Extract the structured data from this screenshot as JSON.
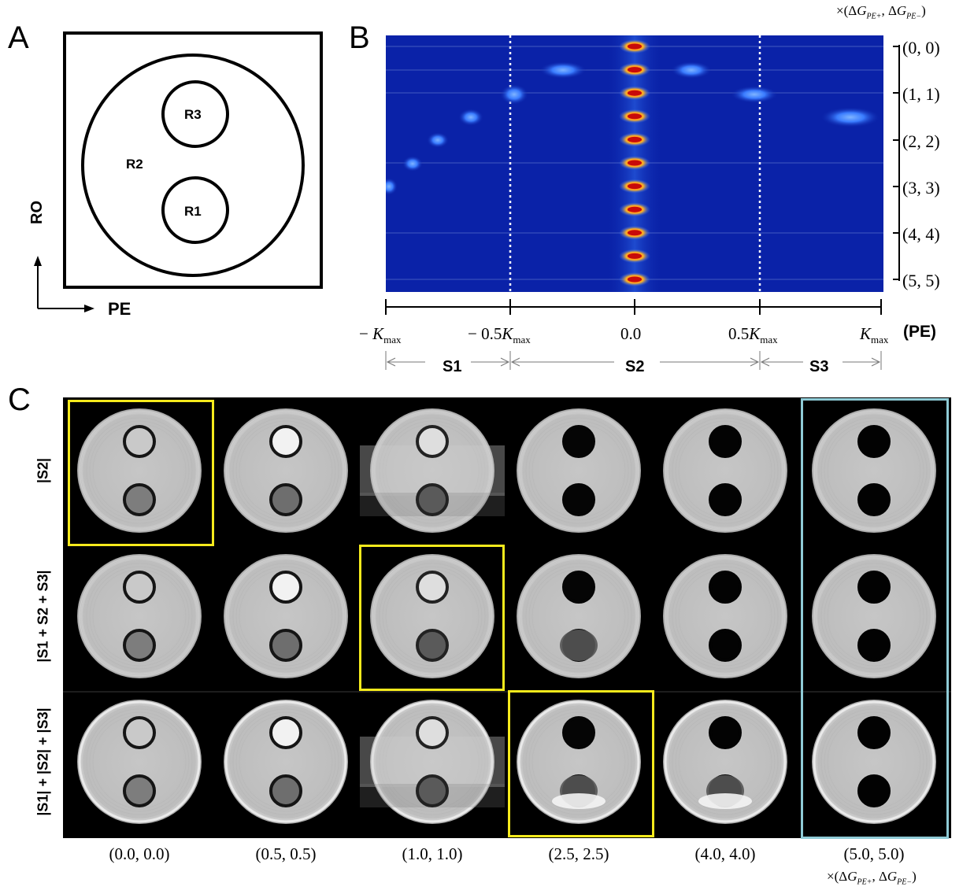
{
  "panels": {
    "a": "A",
    "b": "B",
    "c": "C"
  },
  "panel_a": {
    "regions": {
      "r1": "R1",
      "r2": "R2",
      "r3": "R3"
    },
    "axes": {
      "ro": "RO",
      "pe": "PE"
    }
  },
  "panel_b": {
    "top_label": "×(ΔG_{PE+}, ΔG_{PE−})",
    "y_ticks": [
      "(0, 0)",
      "(1, 1)",
      "(2, 2)",
      "(3, 3)",
      "(4, 4)",
      "(5, 5)"
    ],
    "x_ticks": [
      "− K_max",
      "− 0.5K_max",
      "0.0",
      "0.5K_max",
      "K_max"
    ],
    "x_axis_label": "(PE)",
    "segments": [
      "S1",
      "S2",
      "S3"
    ],
    "colors": {
      "background": "#0a22a8",
      "spot": "#3f86ff",
      "center": "#ff2a10"
    }
  },
  "panel_c": {
    "rows": [
      "|S2|",
      "|S1 + S2 + S3|",
      "|S1| + |S2| + |S3|"
    ],
    "columns": [
      "(0.0, 0.0)",
      "(0.5, 0.5)",
      "(1.0, 1.0)",
      "(2.5, 2.5)",
      "(4.0,  4.0)",
      "(5.0,  5.0)"
    ],
    "unit_label": "×(ΔG_{PE+}, ΔG_{PE−})",
    "colors": {
      "highlight": "#f5ea1c",
      "highlight_alt": "#8fcbd6"
    }
  }
}
